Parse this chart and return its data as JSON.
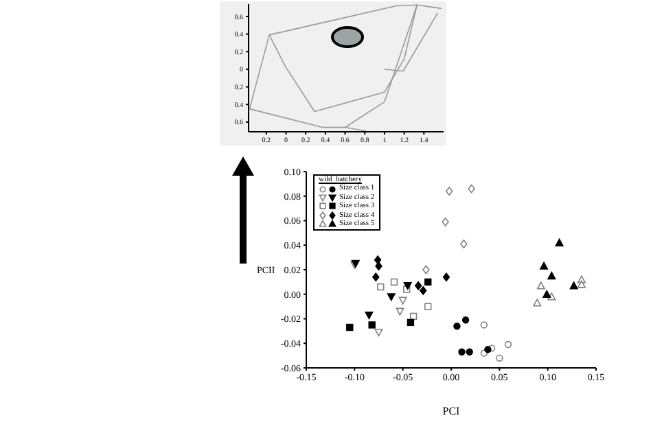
{
  "chart_data": [
    {
      "type": "line",
      "grid": false,
      "marker": "none",
      "line_style": "solid",
      "xlim": [
        -0.38,
        1.6
      ],
      "xticks": [
        {
          "value": -0.2,
          "label": "0.2"
        },
        {
          "value": 0,
          "label": "0"
        },
        {
          "value": 0.2,
          "label": "0.2"
        },
        {
          "value": 0.4,
          "label": "0.4"
        },
        {
          "value": 0.6,
          "label": "0.6"
        },
        {
          "value": 0.8,
          "label": "0.8"
        },
        {
          "value": 1,
          "label": "1"
        },
        {
          "value": 1.2,
          "label": "1.2"
        },
        {
          "value": 1.4,
          "label": "1.4"
        }
      ],
      "ylim": [
        -0.71,
        0.74
      ],
      "yticks": [
        {
          "value": -0.6,
          "label": "0.6"
        },
        {
          "value": -0.4,
          "label": "0.4"
        },
        {
          "value": -0.2,
          "label": "0.2"
        },
        {
          "value": 0,
          "label": "0"
        },
        {
          "value": 0.2,
          "label": "0.2"
        },
        {
          "value": 0.4,
          "label": "0.4"
        },
        {
          "value": 0.6,
          "label": "0.6"
        }
      ],
      "series": [
        {
          "color": "#999999",
          "x": [
            -0.37,
            -0.17,
            1.12,
            1.33,
            1.58
          ],
          "values": [
            -0.45,
            0.39,
            0.72,
            0.73,
            0.69
          ]
        },
        {
          "color": "#999999",
          "x": [
            -0.17,
            0,
            0.29,
            1.0,
            1.2,
            1.33
          ],
          "values": [
            0.39,
            0.02,
            -0.48,
            -0.26,
            0.12,
            0.73
          ]
        },
        {
          "color": "#999999",
          "x": [
            -0.37,
            0.37,
            0.6,
            0.81
          ],
          "values": [
            -0.45,
            -0.66,
            -0.66,
            -0.7
          ]
        },
        {
          "color": "#999999",
          "x": [
            0.6,
            1.0,
            1.33
          ],
          "values": [
            -0.66,
            -0.37,
            0.73
          ]
        },
        {
          "color": "#999999",
          "x": [
            1.0,
            1.19,
            1.54
          ],
          "values": [
            0,
            -0.02,
            0.64
          ]
        }
      ]
    },
    {
      "type": "scatter",
      "xlabel": "PCI",
      "ylabel": "PCII",
      "legend_title": "wild  hatchery",
      "legend": "top left",
      "grid": false,
      "xlim": [
        -0.15,
        0.15
      ],
      "xticks": [
        {
          "value": -0.15,
          "label": "-0.15"
        },
        {
          "value": -0.1,
          "label": "-0.10"
        },
        {
          "value": -0.05,
          "label": "-0.05"
        },
        {
          "value": 0,
          "label": "0.00"
        },
        {
          "value": 0.05,
          "label": "0.05"
        },
        {
          "value": 0.1,
          "label": "0.10"
        },
        {
          "value": 0.15,
          "label": "0.15"
        }
      ],
      "ylim": [
        -0.06,
        0.1
      ],
      "yticks": [
        {
          "value": -0.06,
          "label": "-0.06"
        },
        {
          "value": -0.04,
          "label": "-0.04"
        },
        {
          "value": -0.02,
          "label": "-0.02"
        },
        {
          "value": 0,
          "label": "0.00"
        },
        {
          "value": 0.02,
          "label": "0.02"
        },
        {
          "value": 0.04,
          "label": "0.04"
        },
        {
          "value": 0.06,
          "label": "0.06"
        },
        {
          "value": 0.08,
          "label": "0.08"
        },
        {
          "value": 0.1,
          "label": "0.10"
        }
      ],
      "series": [
        {
          "color": "#808080",
          "marker": "circle",
          "x": [
            0.034,
            0.042,
            0.05,
            0.059,
            0.034
          ],
          "values": [
            -0.048,
            -0.044,
            -0.052,
            -0.041,
            -0.025
          ]
        },
        {
          "color": "#808080",
          "marker": "triangle-down",
          "x": [
            -0.1,
            -0.075,
            -0.05,
            -0.053
          ],
          "values": [
            0.024,
            -0.031,
            -0.005,
            -0.014
          ]
        },
        {
          "color": "#808080",
          "marker": "square",
          "x": [
            -0.073,
            -0.059,
            -0.046,
            -0.024,
            -0.039
          ],
          "values": [
            0.006,
            0.01,
            0.004,
            -0.01,
            -0.018
          ]
        },
        {
          "color": "#808080",
          "marker": "diamond",
          "x": [
            -0.002,
            0.021,
            -0.006,
            0.013,
            -0.026
          ],
          "values": [
            0.084,
            0.086,
            0.059,
            0.041,
            0.02
          ]
        },
        {
          "color": "#808080",
          "marker": "triangle",
          "x": [
            0.093,
            0.089,
            0.104,
            0.135,
            0.135
          ],
          "values": [
            0.007,
            -0.007,
            -0.002,
            0.012,
            0.008
          ]
        },
        {
          "name": "Size class 1",
          "color": "#000000",
          "marker": "circle",
          "x": [
            0.006,
            0.015,
            0.011,
            0.019,
            0.038
          ],
          "values": [
            -0.026,
            -0.021,
            -0.047,
            -0.047,
            -0.045
          ]
        },
        {
          "name": "Size class 2",
          "color": "#000000",
          "marker": "triangle-down",
          "x": [
            -0.099,
            -0.062,
            -0.045,
            -0.085
          ],
          "values": [
            0.025,
            -0.002,
            0.007,
            -0.017
          ]
        },
        {
          "name": "Size class 3",
          "color": "#000000",
          "marker": "square",
          "x": [
            -0.105,
            -0.082,
            -0.042,
            -0.024
          ],
          "values": [
            -0.027,
            -0.025,
            -0.023,
            0.01
          ]
        },
        {
          "name": "Size class 4",
          "color": "#000000",
          "marker": "diamond",
          "x": [
            -0.076,
            -0.075,
            -0.078,
            -0.034,
            -0.029,
            -0.005
          ],
          "values": [
            0.028,
            0.023,
            0.014,
            0.007,
            0.003,
            0.014
          ]
        },
        {
          "name": "Size class 5",
          "color": "#000000",
          "marker": "triangle",
          "x": [
            0.112,
            0.096,
            0.104,
            0.099,
            0.127
          ],
          "values": [
            0.042,
            0.023,
            0.015,
            0,
            0.007
          ]
        }
      ]
    }
  ]
}
